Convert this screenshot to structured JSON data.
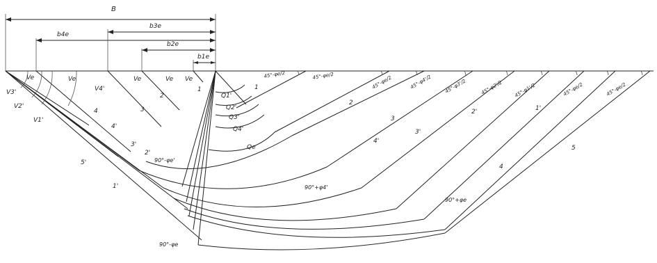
{
  "dimensions": {
    "B": "B",
    "b4e": "b4e",
    "b3e": "b3e",
    "b2e": "b2e",
    "b1e": "b1e"
  },
  "v_labels": {
    "v3p": "V3'",
    "v2p": "V2'",
    "v1p": "V1'",
    "ve1": "Ve",
    "ve2": "Ve",
    "v4p": "V4'",
    "ve3": "Ve",
    "ve4": "Ve",
    "ve5": "Ve"
  },
  "q_labels": {
    "q1": "Q1'",
    "q2": "Q2'",
    "q3": "Q3'",
    "q4": "Q4'",
    "qe": "Qe"
  },
  "line_numbers": {
    "n1_top": "1",
    "n1_top2": "1",
    "n2_mid": "2",
    "n3_mid": "3",
    "n2_right": "2",
    "n3_right": "3",
    "n4p_right": "4'",
    "n3p_right": "3'",
    "n2p_right": "2'",
    "n1p_right": "1'",
    "n4_right": "4",
    "n5_right": "5",
    "n4_left": "4",
    "n4p_left": "4'",
    "n3p_left": "3'",
    "n2p_left": "2'",
    "n5_left": "5'",
    "n1p_left": "1'"
  },
  "angle_labels": {
    "a1": "45°-φe/2",
    "a2": "45°-φe/2",
    "a3": "45°-φe/2",
    "a4": "45°-φ4'/2",
    "a5": "45°-φ3'/2",
    "a6": "45°-φ2'/2",
    "a7": "45°-φ1'/2",
    "a8": "45°-φe/2",
    "a9": "45°-φe/2",
    "b1": "90°-φe'",
    "b2": "90°+φ4'",
    "b3": "90°+φe",
    "b4": "90°-φe"
  }
}
